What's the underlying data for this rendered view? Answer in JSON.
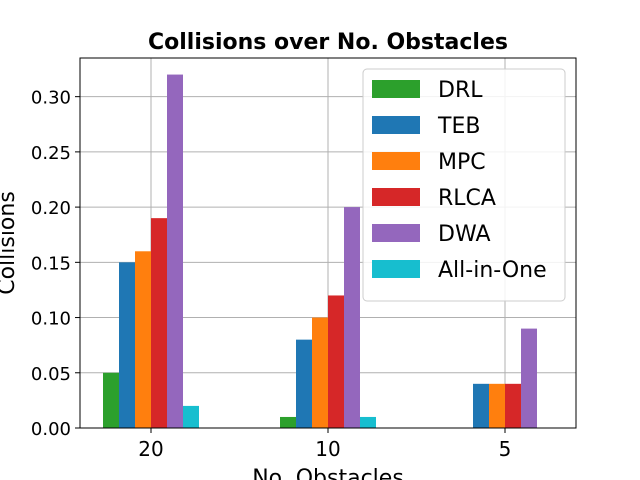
{
  "chart_data": {
    "type": "bar",
    "title": "Collisions over No. Obstacles",
    "xlabel": "No. Obstacles",
    "ylabel": "Collisions",
    "categories": [
      "20",
      "10",
      "5"
    ],
    "ylim": [
      0,
      0.335
    ],
    "yticks": [
      0.0,
      0.05,
      0.1,
      0.15,
      0.2,
      0.25,
      0.3
    ],
    "ytick_labels": [
      "0.00",
      "0.05",
      "0.10",
      "0.15",
      "0.20",
      "0.25",
      "0.30"
    ],
    "grid": true,
    "legend_position": "top-right",
    "series": [
      {
        "name": "DRL",
        "color": "#2ca02c",
        "values": [
          0.05,
          0.01,
          0.0
        ]
      },
      {
        "name": "TEB",
        "color": "#1f77b4",
        "values": [
          0.15,
          0.08,
          0.04
        ]
      },
      {
        "name": "MPC",
        "color": "#ff7f0e",
        "values": [
          0.16,
          0.1,
          0.04
        ]
      },
      {
        "name": "RLCA",
        "color": "#d62728",
        "values": [
          0.19,
          0.12,
          0.04
        ]
      },
      {
        "name": "DWA",
        "color": "#9467bd",
        "values": [
          0.32,
          0.2,
          0.09
        ]
      },
      {
        "name": "All-in-One",
        "color": "#17becf",
        "values": [
          0.02,
          0.01,
          0.0
        ]
      }
    ]
  }
}
